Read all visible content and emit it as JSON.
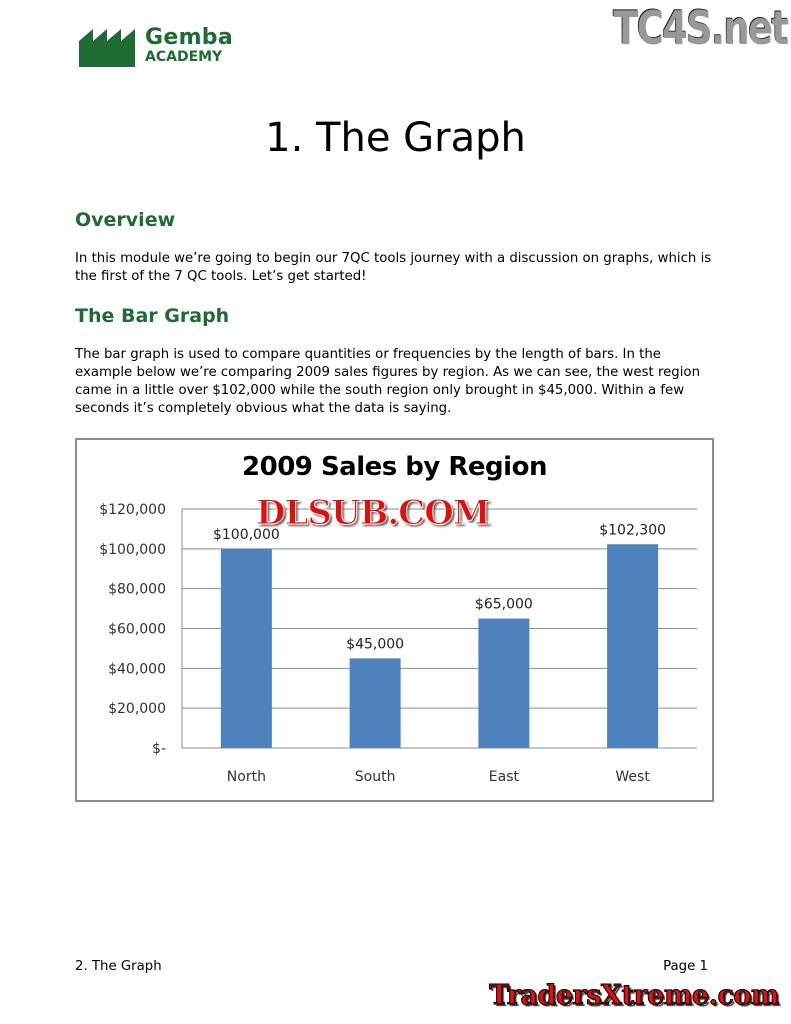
{
  "header": {
    "logo_line1": "Gemba",
    "logo_line2": "ACADEMY",
    "watermark_top": "TC4S.net"
  },
  "page_title": "1. The Graph",
  "sections": [
    {
      "heading": "Overview",
      "body": "In this module we’re going to begin our 7QC tools journey with a discussion on graphs, which is the first of the 7 QC tools.  Let’s get started!"
    },
    {
      "heading": "The Bar Graph",
      "body": "The bar graph is used to compare quantities or frequencies by the length of bars.  In the example below we’re comparing 2009 sales figures by region.  As we can see, the west region came in a little over $102,000 while the south region only brought in $45,000.  Within a few seconds it’s completely obvious what the data is saying."
    }
  ],
  "chart_data": {
    "type": "bar",
    "title": "2009 Sales by Region",
    "categories": [
      "North",
      "South",
      "East",
      "West"
    ],
    "values": [
      100000,
      45000,
      65000,
      102300
    ],
    "data_labels": [
      "$100,000",
      "$45,000",
      "$65,000",
      "$102,300"
    ],
    "y_ticks": [
      0,
      20000,
      40000,
      60000,
      80000,
      100000,
      120000
    ],
    "y_tick_labels": [
      "$-",
      "$20,000",
      "$40,000",
      "$60,000",
      "$80,000",
      "$100,000",
      "$120,000"
    ],
    "ylim": [
      0,
      120000
    ],
    "grid": true,
    "legend": "none",
    "bar_color": "#4f81bd",
    "xlabel": "",
    "ylabel": ""
  },
  "watermark_chart": "DLSUB.COM",
  "footer": {
    "left": "2. The Graph",
    "right": "Page 1",
    "watermark_bottom": "TradersXtreme.com"
  },
  "colors": {
    "heading_green": "#1e6b34"
  }
}
